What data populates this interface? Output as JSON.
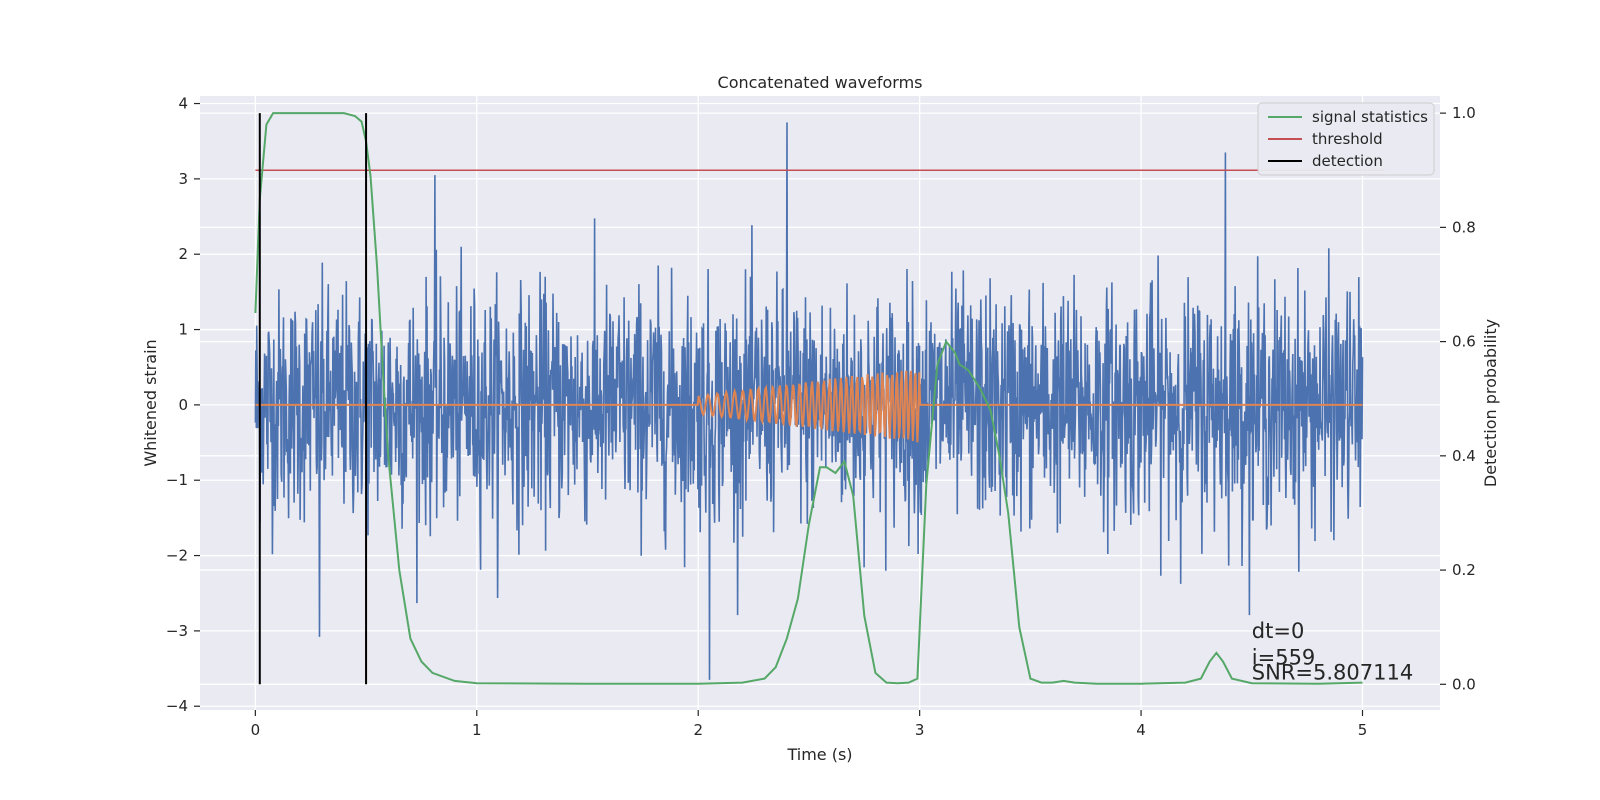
{
  "chart_data": {
    "type": "line",
    "title": "Concatenated waveforms",
    "xlabel": "Time (s)",
    "ylabel": "Whitened strain",
    "y2label": "Detection probability",
    "xlim": [
      -0.25,
      5.35
    ],
    "ylim": [
      -4.05,
      4.1
    ],
    "y2lim": [
      -0.045,
      1.03
    ],
    "x_ticks": [
      0,
      1,
      2,
      3,
      4,
      5
    ],
    "y_ticks": [
      -4,
      -3,
      -2,
      -1,
      0,
      1,
      2,
      3,
      4
    ],
    "y2_ticks": [
      0.0,
      0.2,
      0.4,
      0.6,
      0.8,
      1.0
    ],
    "x_tick_labels": [
      "0",
      "1",
      "2",
      "3",
      "4",
      "5"
    ],
    "y_tick_labels": [
      "−4",
      "−3",
      "−2",
      "−1",
      "0",
      "1",
      "2",
      "3",
      "4"
    ],
    "y2_tick_labels": [
      "0.0",
      "0.2",
      "0.4",
      "0.6",
      "0.8",
      "1.0"
    ],
    "grid": true,
    "legend_position": "top-right",
    "series": [
      {
        "name": "",
        "description": "whitened strain noise",
        "color": "#4c72b0",
        "x_range": [
          0,
          5
        ],
        "typical_range": [
          -1.8,
          1.8
        ],
        "peaks": [
          {
            "x": 2.4,
            "y": 3.75
          },
          {
            "x": 4.38,
            "y": 3.35
          },
          {
            "x": 0.81,
            "y": 3.05
          },
          {
            "x": 2.05,
            "y": -3.65
          },
          {
            "x": 0.29,
            "y": -3.08
          }
        ]
      },
      {
        "name": "",
        "description": "injected chirp waveform",
        "color": "#dd8452",
        "x_range": [
          0,
          5
        ],
        "chirp_start": 2.0,
        "chirp_end": 3.0,
        "amplitude_start": 0.12,
        "amplitude_end": 0.5
      },
      {
        "name": "signal statistics",
        "axis": "right",
        "color": "#55a868",
        "x": [
          0,
          0.02,
          0.05,
          0.08,
          0.12,
          0.2,
          0.3,
          0.4,
          0.45,
          0.48,
          0.5,
          0.52,
          0.55,
          0.58,
          0.6,
          0.65,
          0.7,
          0.75,
          0.8,
          0.9,
          1.0,
          1.5,
          2.0,
          2.2,
          2.3,
          2.35,
          2.4,
          2.45,
          2.5,
          2.55,
          2.58,
          2.62,
          2.66,
          2.7,
          2.75,
          2.8,
          2.85,
          2.9,
          2.95,
          2.99,
          3.03,
          3.08,
          3.12,
          3.16,
          3.18,
          3.22,
          3.27,
          3.32,
          3.36,
          3.4,
          3.45,
          3.5,
          3.55,
          3.6,
          3.65,
          3.7,
          3.8,
          4.0,
          4.2,
          4.27,
          4.31,
          4.34,
          4.37,
          4.41,
          4.5,
          4.8,
          5.0
        ],
        "y": [
          0.65,
          0.85,
          0.98,
          1.0,
          1.0,
          1.0,
          1.0,
          1.0,
          0.995,
          0.985,
          0.95,
          0.89,
          0.73,
          0.52,
          0.4,
          0.2,
          0.08,
          0.04,
          0.02,
          0.006,
          0.002,
          0.001,
          0.001,
          0.003,
          0.01,
          0.03,
          0.08,
          0.15,
          0.28,
          0.38,
          0.38,
          0.37,
          0.39,
          0.33,
          0.12,
          0.02,
          0.003,
          0.002,
          0.003,
          0.01,
          0.35,
          0.56,
          0.6,
          0.58,
          0.56,
          0.55,
          0.52,
          0.48,
          0.4,
          0.3,
          0.1,
          0.01,
          0.003,
          0.003,
          0.006,
          0.003,
          0.001,
          0.001,
          0.003,
          0.01,
          0.04,
          0.055,
          0.04,
          0.01,
          0.002,
          0.001,
          0.003
        ]
      },
      {
        "name": "threshold",
        "axis": "right",
        "color": "#c44e52",
        "x": [
          0,
          5.1
        ],
        "y": [
          0.9,
          0.9
        ]
      },
      {
        "name": "detection",
        "axis": "right",
        "color": "#000000",
        "x": [
          0.02,
          0.5
        ],
        "y_range": [
          0.0,
          1.0
        ]
      }
    ],
    "annotations": [
      {
        "text": "dt=0",
        "x": 4.5,
        "y": -3.0
      },
      {
        "text": "i=559",
        "x": 4.5,
        "y": -3.35
      },
      {
        "text": "SNR=5.807114",
        "x": 4.5,
        "y": -3.55
      }
    ],
    "background_color": "#eaeaf2",
    "grid_color": "#ffffff"
  }
}
